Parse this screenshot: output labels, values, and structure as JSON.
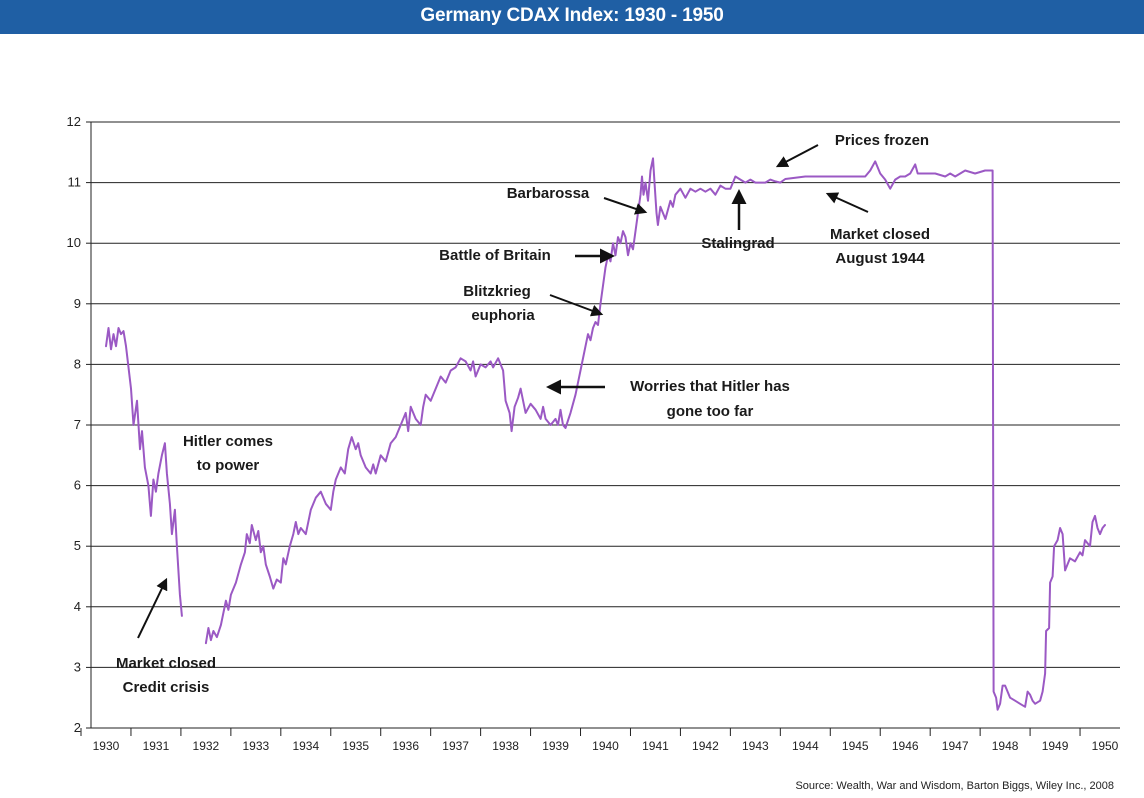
{
  "chart_data": {
    "type": "line",
    "title": "Germany CDAX Index: 1930 - 1950",
    "source": "Source: Wealth, War and Wisdom, Barton Biggs, Wiley Inc., 2008",
    "xlabel": "",
    "ylabel": "",
    "ylim": [
      2,
      12
    ],
    "y_ticks": [
      "2",
      "3",
      "4",
      "5",
      "6",
      "7",
      "8",
      "9",
      "10",
      "11",
      "12"
    ],
    "x_ticks": [
      "1930",
      "1931",
      "1932",
      "1933",
      "1934",
      "1935",
      "1936",
      "1937",
      "1938",
      "1939",
      "1940",
      "1941",
      "1942",
      "1943",
      "1944",
      "1945",
      "1946",
      "1947",
      "1948",
      "1949",
      "1950"
    ],
    "grid": "horizontal",
    "line_color": "#9b59c4",
    "series": [
      {
        "segments": [
          [
            [
              1930.0,
              8.3
            ],
            [
              1930.05,
              8.6
            ],
            [
              1930.1,
              8.25
            ],
            [
              1930.15,
              8.5
            ],
            [
              1930.2,
              8.3
            ],
            [
              1930.25,
              8.6
            ],
            [
              1930.3,
              8.5
            ],
            [
              1930.35,
              8.55
            ],
            [
              1930.4,
              8.3
            ],
            [
              1930.5,
              7.6
            ],
            [
              1930.55,
              7.0
            ],
            [
              1930.62,
              7.4
            ],
            [
              1930.68,
              6.6
            ],
            [
              1930.72,
              6.9
            ],
            [
              1930.78,
              6.3
            ],
            [
              1930.85,
              6.0
            ],
            [
              1930.9,
              5.5
            ],
            [
              1930.95,
              6.1
            ],
            [
              1931.0,
              5.9
            ],
            [
              1931.05,
              6.2
            ],
            [
              1931.12,
              6.5
            ],
            [
              1931.18,
              6.7
            ],
            [
              1931.22,
              6.2
            ],
            [
              1931.28,
              5.7
            ],
            [
              1931.32,
              5.2
            ],
            [
              1931.38,
              5.6
            ],
            [
              1931.42,
              5.0
            ],
            [
              1931.48,
              4.2
            ],
            [
              1931.52,
              3.85
            ]
          ],
          [
            [
              1932.0,
              3.4
            ],
            [
              1932.05,
              3.65
            ],
            [
              1932.1,
              3.45
            ],
            [
              1932.15,
              3.6
            ],
            [
              1932.22,
              3.5
            ],
            [
              1932.3,
              3.7
            ],
            [
              1932.4,
              4.1
            ],
            [
              1932.45,
              3.95
            ],
            [
              1932.5,
              4.2
            ],
            [
              1932.6,
              4.4
            ],
            [
              1932.7,
              4.7
            ],
            [
              1932.78,
              4.9
            ],
            [
              1932.82,
              5.2
            ],
            [
              1932.88,
              5.05
            ],
            [
              1932.92,
              5.35
            ],
            [
              1933.0,
              5.1
            ],
            [
              1933.05,
              5.25
            ],
            [
              1933.1,
              4.9
            ],
            [
              1933.15,
              5.0
            ],
            [
              1933.2,
              4.7
            ],
            [
              1933.28,
              4.5
            ],
            [
              1933.35,
              4.3
            ],
            [
              1933.42,
              4.45
            ],
            [
              1933.5,
              4.4
            ],
            [
              1933.55,
              4.8
            ],
            [
              1933.6,
              4.7
            ],
            [
              1933.68,
              5.0
            ],
            [
              1933.75,
              5.2
            ],
            [
              1933.8,
              5.4
            ],
            [
              1933.85,
              5.2
            ],
            [
              1933.9,
              5.3
            ],
            [
              1934.0,
              5.2
            ],
            [
              1934.1,
              5.6
            ],
            [
              1934.2,
              5.8
            ],
            [
              1934.3,
              5.9
            ],
            [
              1934.4,
              5.7
            ],
            [
              1934.5,
              5.6
            ],
            [
              1934.55,
              5.9
            ],
            [
              1934.6,
              6.1
            ],
            [
              1934.7,
              6.3
            ],
            [
              1934.78,
              6.2
            ],
            [
              1934.85,
              6.6
            ],
            [
              1934.92,
              6.8
            ],
            [
              1935.0,
              6.6
            ],
            [
              1935.05,
              6.7
            ],
            [
              1935.1,
              6.5
            ],
            [
              1935.2,
              6.3
            ],
            [
              1935.3,
              6.2
            ],
            [
              1935.35,
              6.35
            ],
            [
              1935.4,
              6.2
            ],
            [
              1935.5,
              6.5
            ],
            [
              1935.6,
              6.4
            ],
            [
              1935.7,
              6.7
            ],
            [
              1935.8,
              6.8
            ],
            [
              1935.9,
              7.0
            ],
            [
              1936.0,
              7.2
            ],
            [
              1936.05,
              6.9
            ],
            [
              1936.1,
              7.3
            ],
            [
              1936.2,
              7.1
            ],
            [
              1936.3,
              7.0
            ],
            [
              1936.35,
              7.3
            ],
            [
              1936.4,
              7.5
            ],
            [
              1936.5,
              7.4
            ],
            [
              1936.6,
              7.6
            ],
            [
              1936.7,
              7.8
            ],
            [
              1936.8,
              7.7
            ],
            [
              1936.9,
              7.9
            ],
            [
              1937.0,
              7.95
            ],
            [
              1937.1,
              8.1
            ],
            [
              1937.2,
              8.05
            ],
            [
              1937.3,
              7.9
            ],
            [
              1937.35,
              8.05
            ],
            [
              1937.4,
              7.8
            ],
            [
              1937.5,
              8.0
            ],
            [
              1937.6,
              7.95
            ],
            [
              1937.7,
              8.05
            ],
            [
              1937.75,
              7.95
            ],
            [
              1937.85,
              8.1
            ],
            [
              1937.95,
              7.9
            ],
            [
              1938.0,
              7.4
            ],
            [
              1938.08,
              7.2
            ],
            [
              1938.12,
              6.9
            ],
            [
              1938.18,
              7.3
            ],
            [
              1938.25,
              7.45
            ],
            [
              1938.3,
              7.6
            ],
            [
              1938.35,
              7.4
            ],
            [
              1938.4,
              7.2
            ],
            [
              1938.5,
              7.35
            ],
            [
              1938.6,
              7.25
            ],
            [
              1938.7,
              7.1
            ],
            [
              1938.75,
              7.3
            ],
            [
              1938.8,
              7.1
            ],
            [
              1938.9,
              7.0
            ],
            [
              1939.0,
              7.1
            ],
            [
              1939.05,
              7.0
            ],
            [
              1939.1,
              7.25
            ],
            [
              1939.15,
              7.0
            ],
            [
              1939.2,
              6.95
            ],
            [
              1939.3,
              7.2
            ],
            [
              1939.4,
              7.5
            ],
            [
              1939.5,
              7.9
            ],
            [
              1939.6,
              8.3
            ],
            [
              1939.65,
              8.5
            ],
            [
              1939.7,
              8.4
            ],
            [
              1939.75,
              8.6
            ],
            [
              1939.8,
              8.7
            ],
            [
              1939.85,
              8.65
            ],
            [
              1939.9,
              9.0
            ],
            [
              1939.95,
              9.3
            ],
            [
              1940.0,
              9.6
            ],
            [
              1940.05,
              9.8
            ],
            [
              1940.1,
              9.7
            ],
            [
              1940.15,
              10.0
            ],
            [
              1940.2,
              9.8
            ],
            [
              1940.25,
              10.1
            ],
            [
              1940.3,
              10.0
            ],
            [
              1940.35,
              10.2
            ],
            [
              1940.4,
              10.1
            ],
            [
              1940.45,
              9.8
            ],
            [
              1940.5,
              10.0
            ],
            [
              1940.55,
              9.9
            ],
            [
              1940.6,
              10.2
            ],
            [
              1940.65,
              10.5
            ],
            [
              1940.7,
              10.8
            ],
            [
              1940.73,
              11.1
            ],
            [
              1940.76,
              10.8
            ],
            [
              1940.8,
              11.0
            ],
            [
              1940.85,
              10.7
            ],
            [
              1940.9,
              11.2
            ],
            [
              1940.95,
              11.4
            ],
            [
              1940.98,
              11.0
            ],
            [
              1941.02,
              10.5
            ],
            [
              1941.05,
              10.3
            ],
            [
              1941.1,
              10.6
            ],
            [
              1941.2,
              10.4
            ],
            [
              1941.3,
              10.7
            ],
            [
              1941.35,
              10.6
            ],
            [
              1941.4,
              10.8
            ],
            [
              1941.5,
              10.9
            ],
            [
              1941.6,
              10.75
            ],
            [
              1941.7,
              10.9
            ],
            [
              1941.8,
              10.85
            ],
            [
              1941.9,
              10.9
            ],
            [
              1942.0,
              10.85
            ],
            [
              1942.1,
              10.9
            ],
            [
              1942.2,
              10.8
            ],
            [
              1942.3,
              10.95
            ],
            [
              1942.4,
              10.9
            ],
            [
              1942.5,
              10.9
            ],
            [
              1942.6,
              11.1
            ],
            [
              1942.7,
              11.05
            ],
            [
              1942.8,
              11.0
            ],
            [
              1942.9,
              11.05
            ],
            [
              1943.0,
              11.0
            ],
            [
              1943.2,
              11.0
            ],
            [
              1943.3,
              11.05
            ],
            [
              1943.4,
              11.02
            ],
            [
              1943.5,
              11.0
            ],
            [
              1943.6,
              11.06
            ],
            [
              1944.0,
              11.1
            ],
            [
              1944.5,
              11.1
            ],
            [
              1945.0,
              11.1
            ],
            [
              1945.2,
              11.1
            ],
            [
              1945.3,
              11.2
            ],
            [
              1945.4,
              11.35
            ],
            [
              1945.5,
              11.15
            ],
            [
              1945.6,
              11.05
            ],
            [
              1945.7,
              10.9
            ],
            [
              1945.8,
              11.05
            ],
            [
              1945.9,
              11.1
            ],
            [
              1946.0,
              11.1
            ],
            [
              1946.1,
              11.15
            ],
            [
              1946.2,
              11.3
            ],
            [
              1946.25,
              11.15
            ],
            [
              1946.4,
              11.15
            ],
            [
              1946.6,
              11.15
            ],
            [
              1946.8,
              11.1
            ],
            [
              1946.9,
              11.15
            ],
            [
              1947.0,
              11.1
            ],
            [
              1947.2,
              11.2
            ],
            [
              1947.4,
              11.15
            ],
            [
              1947.6,
              11.2
            ],
            [
              1947.7,
              11.2
            ],
            [
              1947.75,
              11.2
            ],
            [
              1947.77,
              2.6
            ],
            [
              1947.82,
              2.5
            ],
            [
              1947.85,
              2.3
            ],
            [
              1947.9,
              2.4
            ],
            [
              1947.95,
              2.7
            ],
            [
              1948.0,
              2.7
            ],
            [
              1948.1,
              2.5
            ],
            [
              1948.2,
              2.45
            ],
            [
              1948.3,
              2.4
            ],
            [
              1948.4,
              2.35
            ],
            [
              1948.45,
              2.6
            ],
            [
              1948.5,
              2.55
            ],
            [
              1948.55,
              2.45
            ],
            [
              1948.6,
              2.4
            ],
            [
              1948.7,
              2.45
            ],
            [
              1948.75,
              2.6
            ],
            [
              1948.8,
              2.9
            ],
            [
              1948.82,
              3.6
            ],
            [
              1948.88,
              3.65
            ],
            [
              1948.9,
              4.4
            ],
            [
              1948.95,
              4.5
            ],
            [
              1948.98,
              5.0
            ],
            [
              1949.05,
              5.1
            ],
            [
              1949.1,
              5.3
            ],
            [
              1949.15,
              5.2
            ],
            [
              1949.2,
              4.6
            ],
            [
              1949.3,
              4.8
            ],
            [
              1949.4,
              4.75
            ],
            [
              1949.5,
              4.9
            ],
            [
              1949.55,
              4.85
            ],
            [
              1949.6,
              5.1
            ],
            [
              1949.7,
              5.0
            ],
            [
              1949.75,
              5.4
            ],
            [
              1949.8,
              5.5
            ],
            [
              1949.85,
              5.3
            ],
            [
              1949.9,
              5.2
            ],
            [
              1949.95,
              5.3
            ],
            [
              1950.0,
              5.35
            ]
          ]
        ]
      }
    ],
    "annotations": [
      {
        "lines": [
          "Hitler comes",
          "to power"
        ]
      },
      {
        "lines": [
          "Market closed",
          "Credit crisis"
        ]
      },
      {
        "lines": [
          "Barbarossa"
        ]
      },
      {
        "lines": [
          "Battle of Britain"
        ]
      },
      {
        "lines": [
          "Blitzkrieg",
          "euphoria"
        ]
      },
      {
        "lines": [
          "Worries that Hitler has",
          "gone too far"
        ]
      },
      {
        "lines": [
          "Stalingrad"
        ]
      },
      {
        "lines": [
          "Prices frozen"
        ]
      },
      {
        "lines": [
          "Market closed",
          "August 1944"
        ]
      }
    ]
  }
}
